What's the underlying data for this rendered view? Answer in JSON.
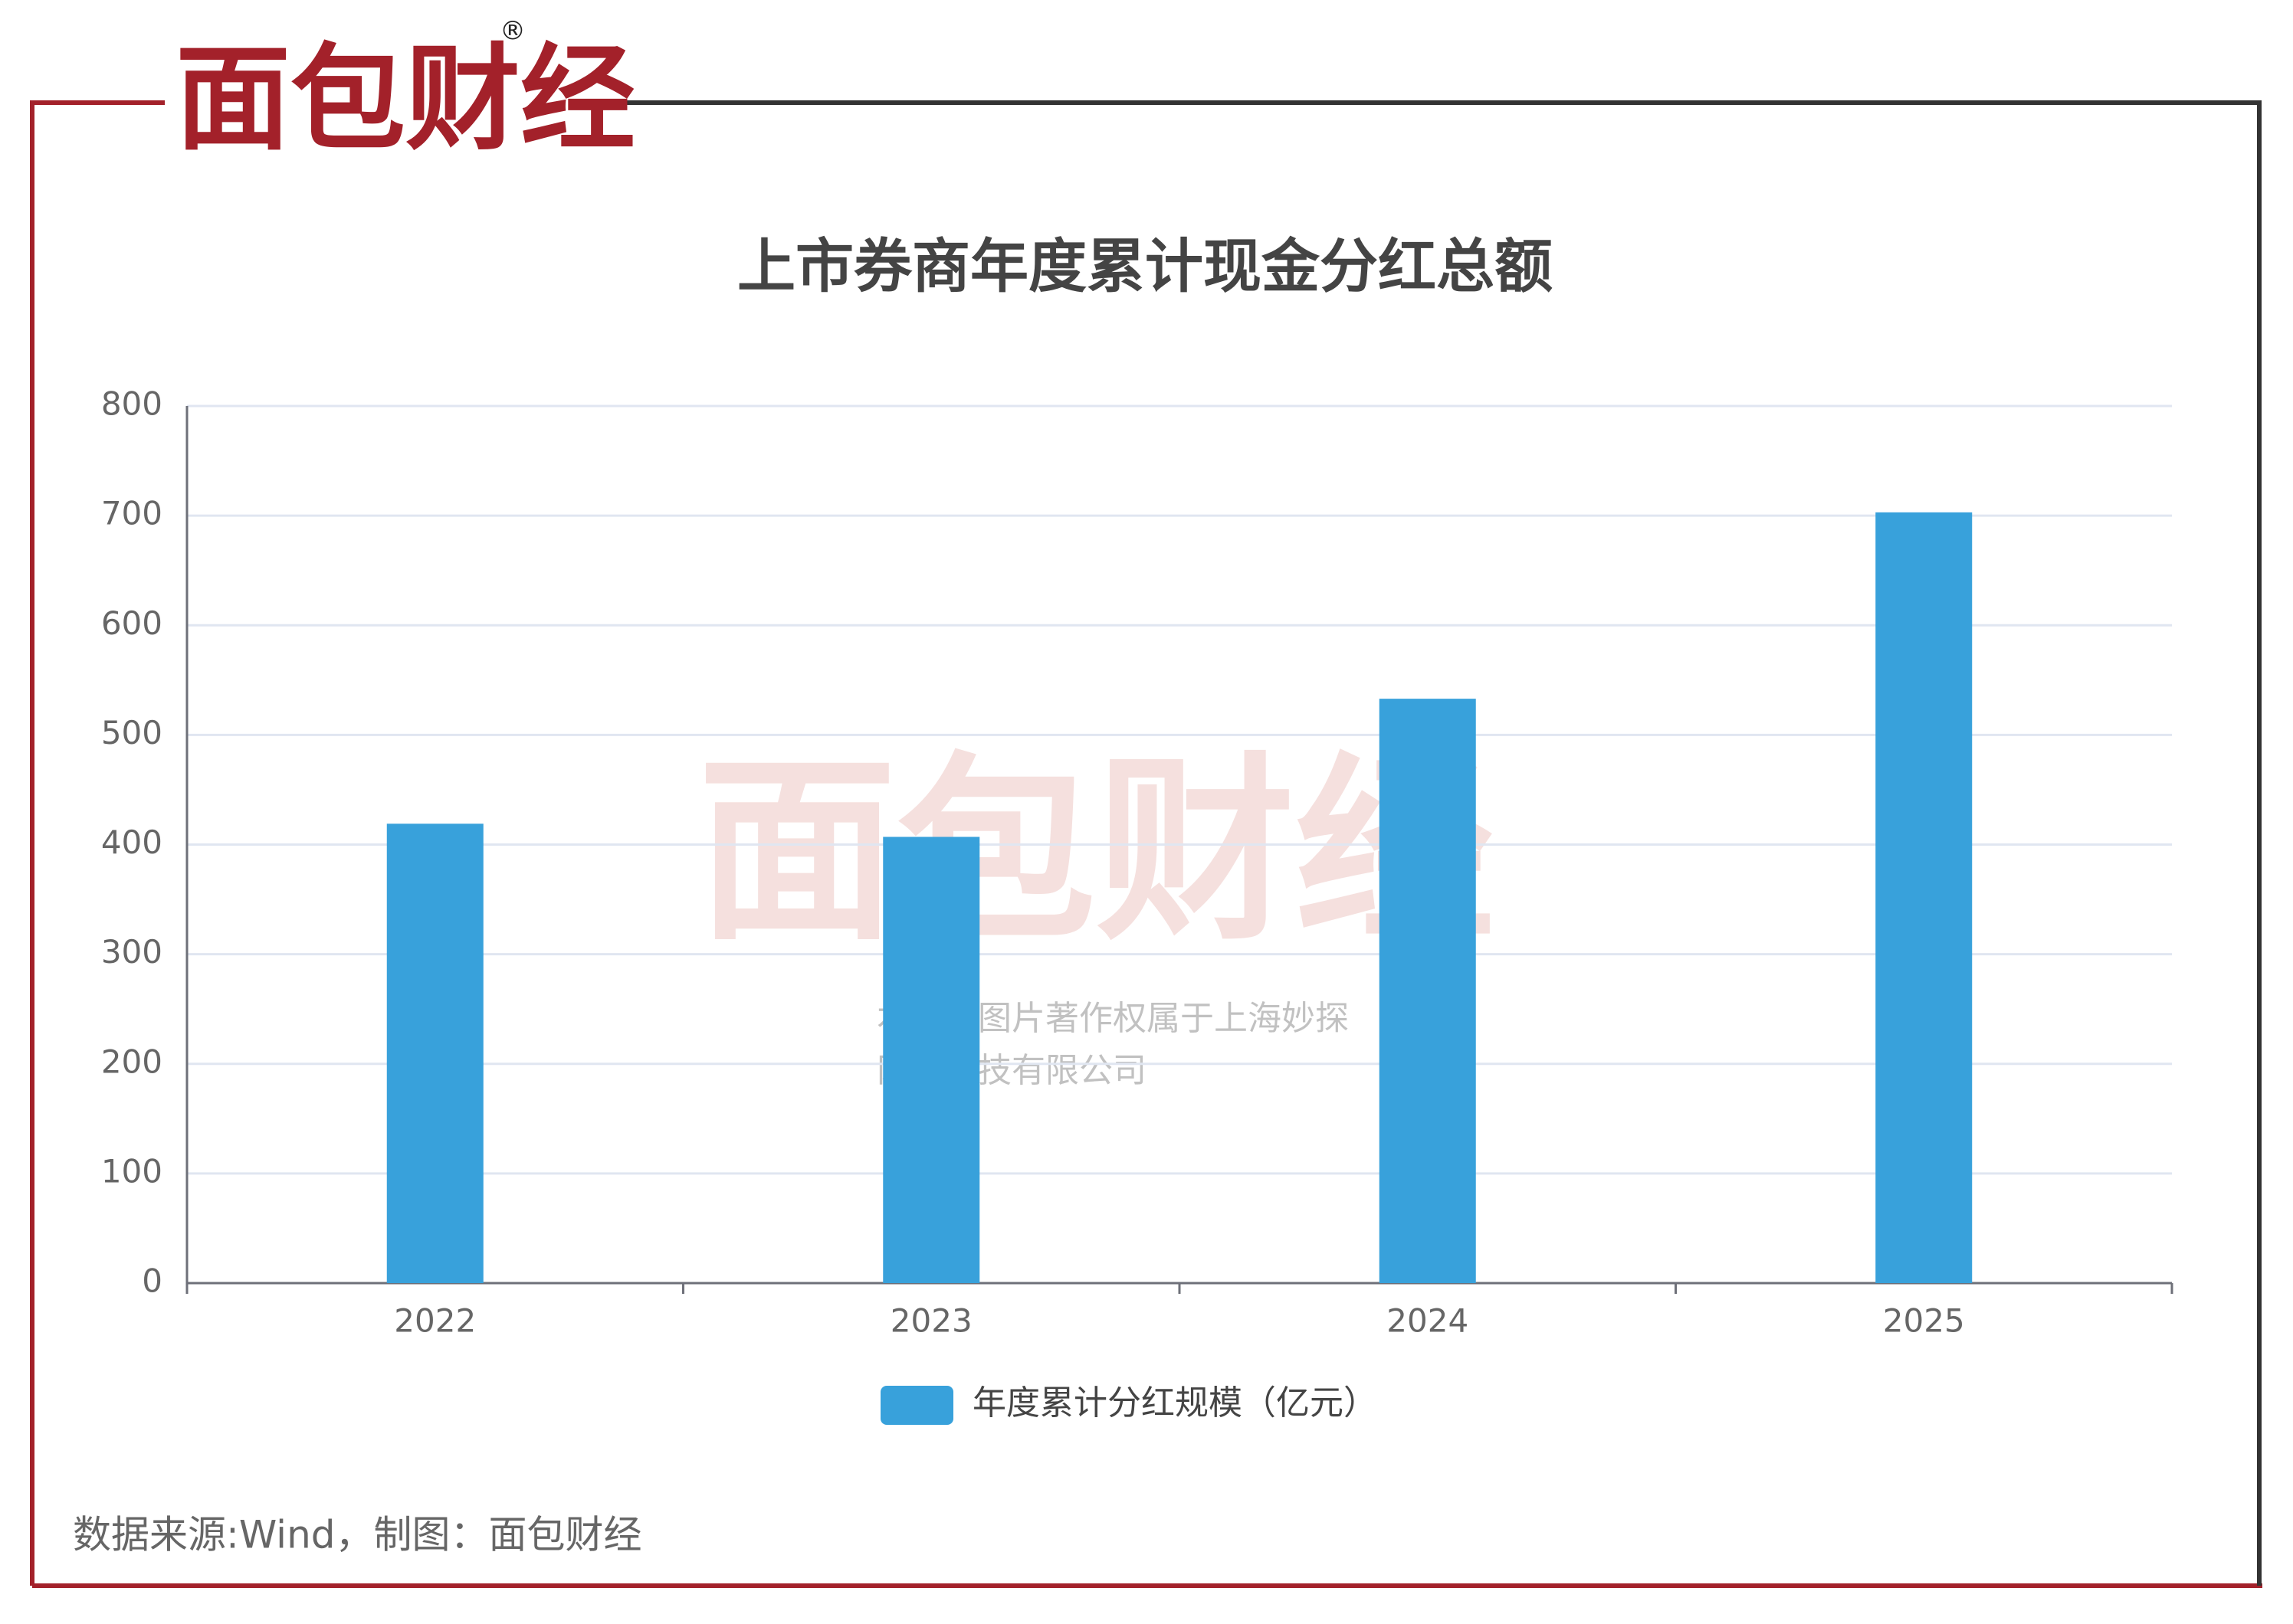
{
  "brand": {
    "logo": "面包财经",
    "registered": "®"
  },
  "watermark": {
    "line1": "本图表图片著作权属于上海妙探",
    "line2": "网络科技有限公司"
  },
  "source": "数据来源:Wind，制图：面包财经",
  "chart_data": {
    "type": "bar",
    "title": "上市券商年度累计现金分红总额",
    "categories": [
      "2022",
      "2023",
      "2024",
      "2025"
    ],
    "series": [
      {
        "name": "年度累计分红规模（亿元）",
        "color": "#38a1db",
        "values": [
          419,
          407,
          533,
          703
        ]
      }
    ],
    "ylim": [
      0,
      800
    ],
    "yticks": [
      0,
      100,
      200,
      300,
      400,
      500,
      600,
      700,
      800
    ],
    "grid": true,
    "legend": "bottom"
  }
}
